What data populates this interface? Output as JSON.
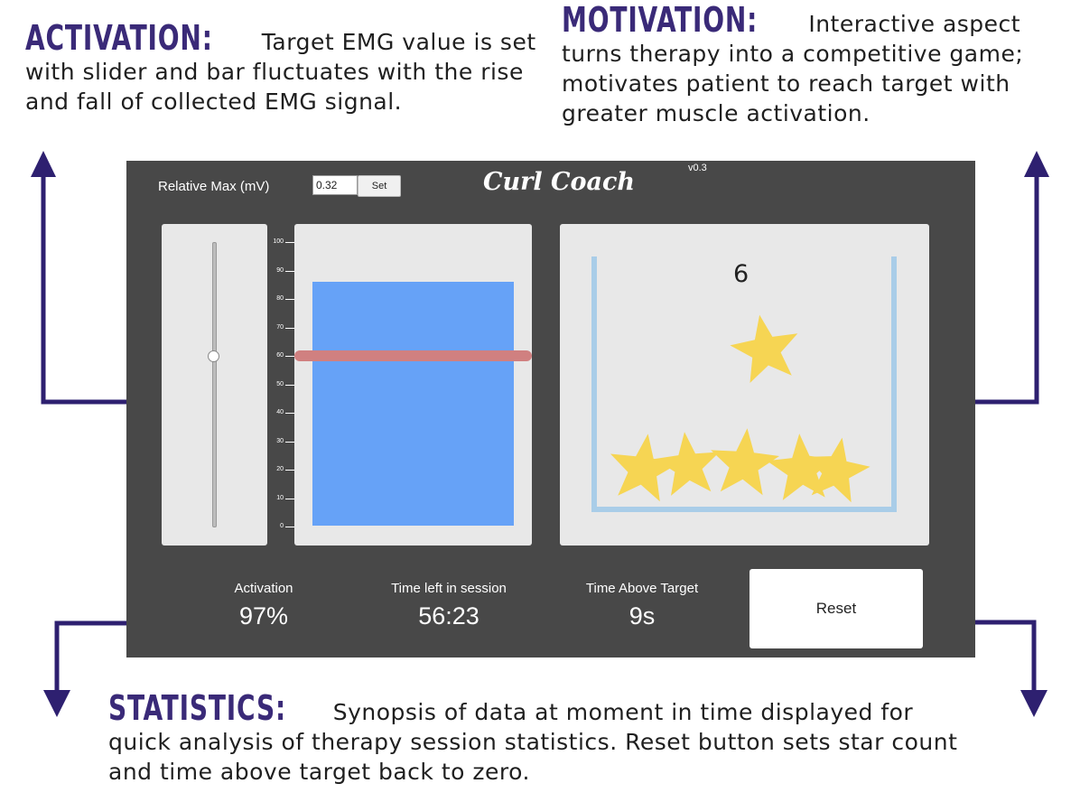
{
  "annotations": {
    "activation": {
      "heading": "ACTIVATION:",
      "text": "Target EMG value is set with slider and bar fluctuates with the rise and fall of collected EMG signal."
    },
    "motivation": {
      "heading": "MOTIVATION:",
      "text": "Interactive aspect turns therapy into a competitive game; motivates patient to reach target with greater muscle activation."
    },
    "statistics": {
      "heading": "STATISTICS:",
      "text": "Synopsis of data at moment in time displayed for quick analysis of therapy session statistics. Reset button sets star count and time above target back to zero."
    }
  },
  "app": {
    "title": "Curl Coach",
    "version": "v0.3",
    "relative_max_label": "Relative Max (mV)",
    "relative_max_value": "0.32",
    "set_label": "Set",
    "scale_ticks": [
      "100",
      "90",
      "80",
      "70",
      "60",
      "50",
      "40",
      "30",
      "20",
      "10",
      "0"
    ],
    "slider_level_percent": 60,
    "emg_bar_level_percent": 86,
    "target_level_percent": 60,
    "star_count": "6",
    "stats": {
      "activation_label": "Activation",
      "activation_value": "97%",
      "time_left_label": "Time left in session",
      "time_left_value": "56:23",
      "above_target_label": "Time Above Target",
      "above_target_value": "9s"
    },
    "reset_label": "Reset"
  },
  "colors": {
    "annotation_heading": "#3a2a78",
    "arrow": "#2e2070",
    "window_bg": "#484848",
    "panel_bg": "#e8e8e8",
    "emg_bar": "#66a2f7",
    "target_line": "#d08080",
    "star": "#f6d553",
    "container": "#a9cde8"
  }
}
